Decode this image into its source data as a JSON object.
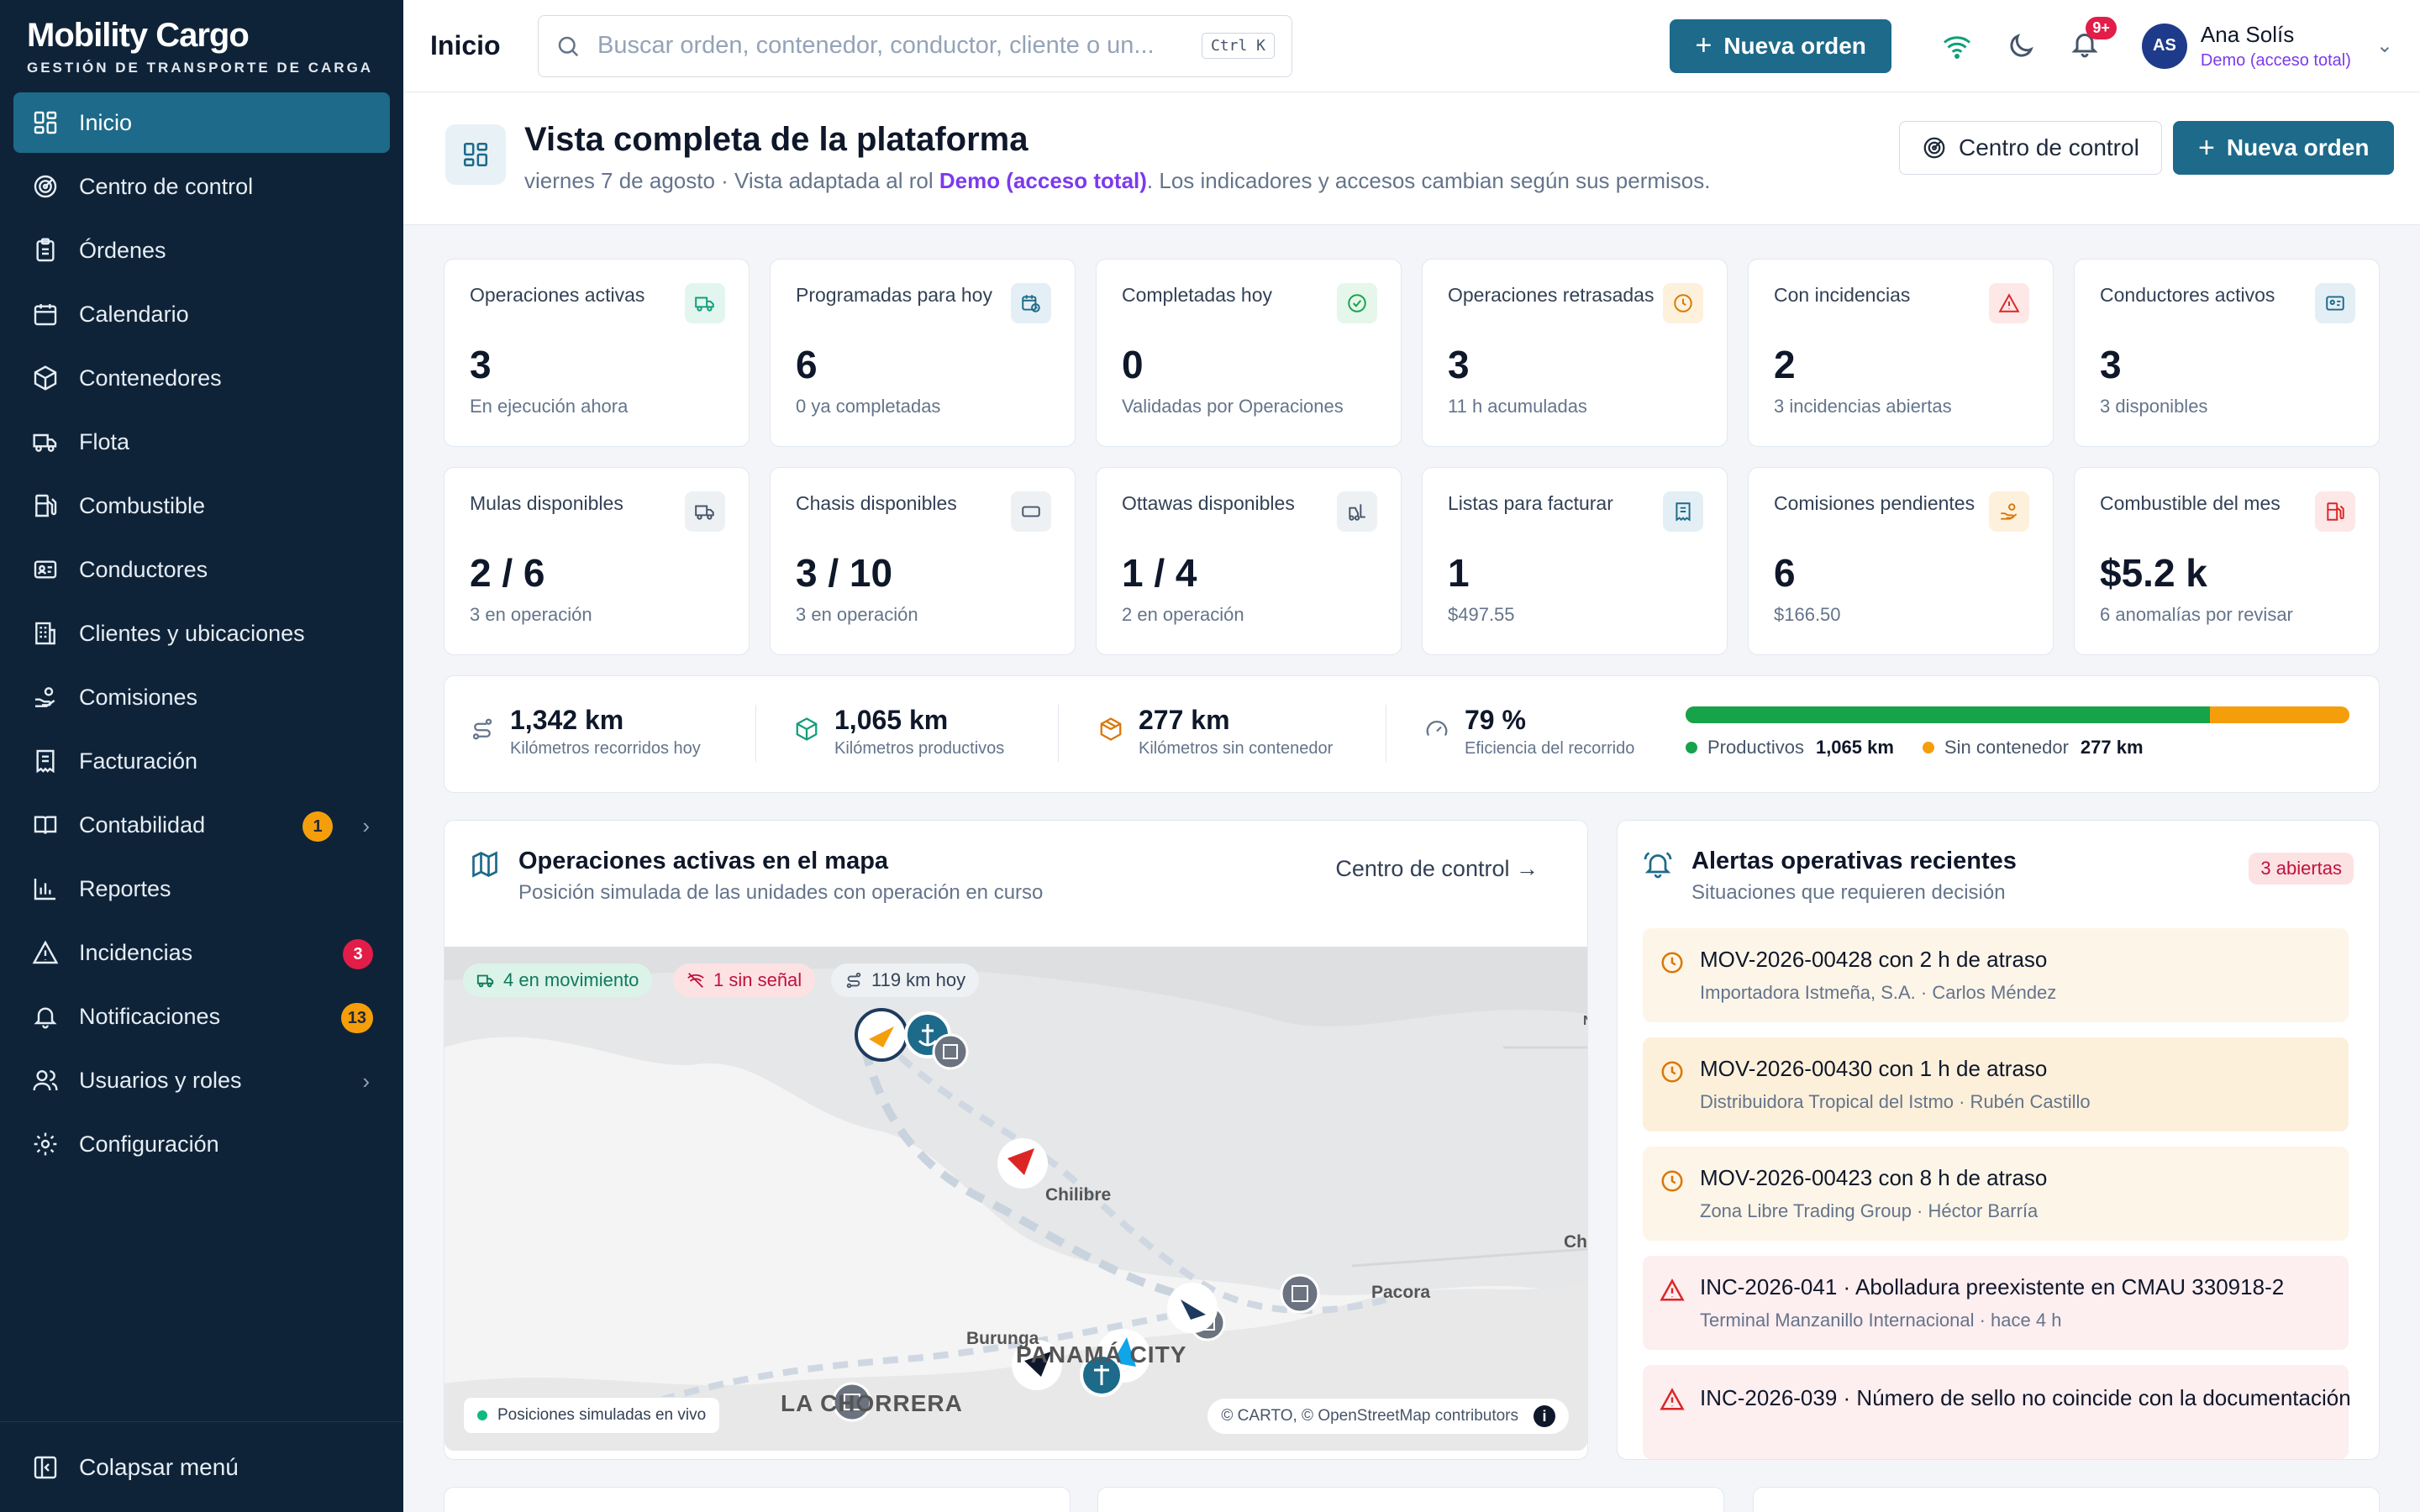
{
  "brand": {
    "name": "Mobility Cargo",
    "tagline": "GESTIÓN DE TRANSPORTE DE CARGA"
  },
  "sidebar": {
    "items": [
      {
        "label": "Inicio",
        "icon": "grid-icon"
      },
      {
        "label": "Centro de control",
        "icon": "radar-icon"
      },
      {
        "label": "Órdenes",
        "icon": "clipboard-icon"
      },
      {
        "label": "Calendario",
        "icon": "calendar-icon"
      },
      {
        "label": "Contenedores",
        "icon": "box-icon"
      },
      {
        "label": "Flota",
        "icon": "truck-icon"
      },
      {
        "label": "Combustible",
        "icon": "fuel-icon"
      },
      {
        "label": "Conductores",
        "icon": "id-card-icon"
      },
      {
        "label": "Clientes y ubicaciones",
        "icon": "building-icon"
      },
      {
        "label": "Comisiones",
        "icon": "hand-coins-icon"
      },
      {
        "label": "Facturación",
        "icon": "receipt-icon"
      },
      {
        "label": "Contabilidad",
        "icon": "book-icon",
        "badge": "1"
      },
      {
        "label": "Reportes",
        "icon": "bar-chart-icon"
      },
      {
        "label": "Incidencias",
        "icon": "warning-icon",
        "badge": "3"
      },
      {
        "label": "Notificaciones",
        "icon": "bell-icon",
        "badge": "13"
      },
      {
        "label": "Usuarios y roles",
        "icon": "users-icon"
      },
      {
        "label": "Configuración",
        "icon": "gear-icon"
      }
    ],
    "collapse_label": "Colapsar menú"
  },
  "topbar": {
    "title": "Inicio",
    "search_placeholder": "Buscar orden, contenedor, conductor, cliente o un...",
    "search_shortcut": "Ctrl K",
    "new_order": "Nueva orden",
    "notif_count": "9+",
    "user_name": "Ana Solís",
    "user_role": "Demo (acceso total)",
    "user_initials": "AS"
  },
  "header": {
    "title": "Vista completa de la plataforma",
    "date": "viernes 7 de agosto · Vista adaptada al rol ",
    "role": "Demo (acceso total)",
    "suffix": ". Los indicadores y accesos cambian según sus permisos.",
    "control_button": "Centro de control",
    "new_order_button": "Nueva orden"
  },
  "kpis": [
    {
      "label": "Operaciones activas",
      "value": "3",
      "sub": "En ejecución ahora",
      "icon": "truck-icon",
      "color": "#0f9f7a",
      "bg": "#e3f5ef"
    },
    {
      "label": "Programadas para hoy",
      "value": "6",
      "sub": "0 ya completadas",
      "icon": "calendar-clock-icon",
      "color": "#1d6a8a",
      "bg": "#e4eff5"
    },
    {
      "label": "Completadas hoy",
      "value": "0",
      "sub": "Validadas por Operaciones",
      "icon": "check-circle-icon",
      "color": "#16a34a",
      "bg": "#e5f6ea"
    },
    {
      "label": "Operaciones retrasadas",
      "value": "3",
      "sub": "11 h acumuladas",
      "icon": "clock-icon",
      "color": "#d97706",
      "bg": "#fdf1dc"
    },
    {
      "label": "Con incidencias",
      "value": "2",
      "sub": "3 incidencias abiertas",
      "icon": "warning-icon",
      "color": "#dc2626",
      "bg": "#fde7e7"
    },
    {
      "label": "Conductores activos",
      "value": "3",
      "sub": "3 disponibles",
      "icon": "id-card-icon",
      "color": "#1d6a8a",
      "bg": "#e4eff5"
    },
    {
      "label": "Mulas disponibles",
      "value": "2 / 6",
      "sub": "3 en operación",
      "icon": "truck-icon",
      "color": "#475569",
      "bg": "#eef1f4"
    },
    {
      "label": "Chasis disponibles",
      "value": "3 / 10",
      "sub": "3 en operación",
      "icon": "rectangle-icon",
      "color": "#475569",
      "bg": "#eef1f4"
    },
    {
      "label": "Ottawas disponibles",
      "value": "1 / 4",
      "sub": "2 en operación",
      "icon": "forklift-icon",
      "color": "#475569",
      "bg": "#eef1f4"
    },
    {
      "label": "Listas para facturar",
      "value": "1",
      "sub": "$497.55",
      "icon": "receipt-icon",
      "color": "#1d6a8a",
      "bg": "#e4eff5"
    },
    {
      "label": "Comisiones pendientes",
      "value": "6",
      "sub": "$166.50",
      "icon": "hand-coins-icon",
      "color": "#d97706",
      "bg": "#fdf1dc"
    },
    {
      "label": "Combustible del mes",
      "value": "$5.2 k",
      "sub": "6 anomalías por revisar",
      "icon": "fuel-icon",
      "color": "#dc2626",
      "bg": "#fde7e7"
    }
  ],
  "kilometers": {
    "items": [
      {
        "value": "1,342 km",
        "label": "Kilómetros recorridos hoy",
        "icon": "route-icon",
        "color": "#64748b"
      },
      {
        "value": "1,065 km",
        "label": "Kilómetros productivos",
        "icon": "package-icon",
        "color": "#0f9f7a"
      },
      {
        "value": "277 km",
        "label": "Kilómetros sin contenedor",
        "icon": "box-open-icon",
        "color": "#d97706"
      },
      {
        "value": "79 %",
        "label": "Eficiencia del recorrido",
        "icon": "gauge-icon",
        "color": "#64748b"
      }
    ],
    "productive_fraction": 0.79,
    "legend_productive": "Productivos",
    "legend_productive_value": "1,065 km",
    "legend_empty": "Sin contenedor",
    "legend_empty_value": "277 km",
    "color_productive": "#16a34a",
    "color_empty": "#f59e0b"
  },
  "map_panel": {
    "title": "Operaciones activas en el mapa",
    "subtitle": "Posición simulada de las unidades con operación en curso",
    "link": "Centro de control",
    "chip_moving": "4 en movimiento",
    "chip_nosignal": "1 sin señal",
    "chip_km": "119 km hoy",
    "labels": [
      "Chilibre",
      "Pacora",
      "Burunga",
      "PANAMÁ CITY",
      "LA CHORRERA",
      "Ch",
      "N"
    ],
    "live": "Posiciones simuladas en vivo",
    "attribution": "© CARTO, © OpenStreetMap contributors"
  },
  "alerts_panel": {
    "title": "Alertas operativas recientes",
    "subtitle": "Situaciones que requieren decisión",
    "open_pill": "3 abiertas",
    "alerts": [
      {
        "title": "MOV-2026-00428 con 2 h de atraso",
        "sub": "Importadora Istmeña, S.A. · Carlos Méndez",
        "type": "delay"
      },
      {
        "title": "MOV-2026-00430 con 1 h de atraso",
        "sub": "Distribuidora Tropical del Istmo · Rubén Castillo",
        "type": "delay"
      },
      {
        "title": "MOV-2026-00423 con 8 h de atraso",
        "sub": "Zona Libre Trading Group · Héctor Barría",
        "type": "delay"
      },
      {
        "title": "INC-2026-041 · Abolladura preexistente en CMAU 330918-2",
        "sub": "Terminal Manzanillo Internacional · hace 4 h",
        "type": "incident"
      },
      {
        "title": "INC-2026-039 · Número de sello no coincide con la documentación",
        "sub": "",
        "type": "incident"
      }
    ]
  }
}
